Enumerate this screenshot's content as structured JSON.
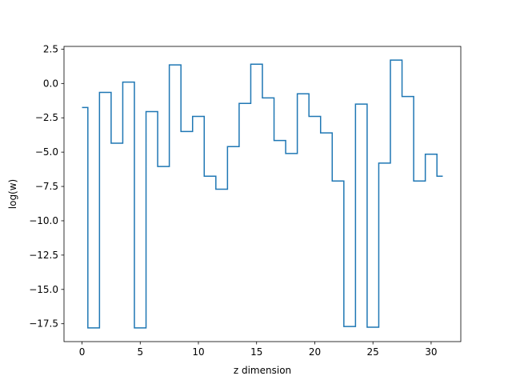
{
  "chart_data": {
    "type": "line",
    "step_style": "mid",
    "xlabel": "z dimension",
    "ylabel": "log(w)",
    "xlim": [
      -1.55,
      32.55
    ],
    "ylim": [
      -18.8,
      2.7
    ],
    "x_ticks": [
      0,
      5,
      10,
      15,
      20,
      25,
      30
    ],
    "x_tick_labels": [
      "0",
      "5",
      "10",
      "15",
      "20",
      "25",
      "30"
    ],
    "y_ticks": [
      2.5,
      0,
      -2.5,
      -5,
      -7.5,
      -10,
      -12.5,
      -15,
      -17.5
    ],
    "y_tick_labels": [
      "2.5",
      "0.0",
      "−2.5",
      "−5.0",
      "−7.5",
      "−10.0",
      "−12.5",
      "−15.0",
      "−17.5"
    ],
    "grid": false,
    "colors": {
      "line": "#1f77b4"
    },
    "series": [
      {
        "x": [
          0,
          1,
          2,
          3,
          4,
          5,
          6,
          7,
          8,
          9,
          10,
          11,
          12,
          13,
          14,
          15,
          16,
          17,
          18,
          19,
          20,
          21,
          22,
          23,
          24,
          25,
          26,
          27,
          28,
          29,
          30,
          31
        ],
        "values": [
          -1.75,
          -17.8,
          -0.65,
          -4.35,
          0.1,
          -17.8,
          -2.05,
          -6.05,
          1.35,
          -3.5,
          -2.4,
          -6.75,
          -7.7,
          -4.6,
          -1.45,
          1.4,
          -1.05,
          -4.15,
          -5.1,
          -0.75,
          -2.4,
          -3.6,
          -7.1,
          -17.7,
          -1.5,
          -17.75,
          -5.8,
          1.7,
          -0.95,
          -7.1,
          -5.15,
          -6.75
        ]
      }
    ]
  }
}
